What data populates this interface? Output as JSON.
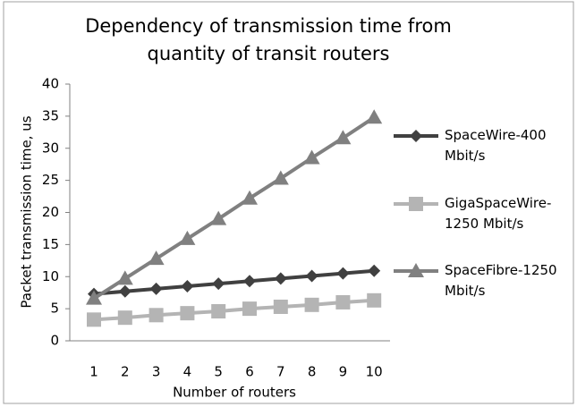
{
  "chart_data": {
    "type": "line",
    "title": "Dependency of transmission time from quantity of transit routers",
    "x_label": "Number of routers",
    "y_label": "Packet transmission time, us",
    "categories": [
      1,
      2,
      3,
      4,
      5,
      6,
      7,
      8,
      9,
      10
    ],
    "series": [
      {
        "name": "SpaceWire-400 Mbit/s",
        "color": "#404040",
        "marker": "diamond",
        "values": [
          7.3,
          7.7,
          8.1,
          8.5,
          8.9,
          9.3,
          9.7,
          10.1,
          10.5,
          10.9
        ]
      },
      {
        "name": "GigaSpaceWire-1250 Mbit/s",
        "color": "#b4b4b4",
        "marker": "square",
        "values": [
          3.3,
          3.6,
          4.0,
          4.3,
          4.6,
          5.0,
          5.3,
          5.6,
          6.0,
          6.3
        ]
      },
      {
        "name": "SpaceFibre-1250 Mbit/s",
        "color": "#808080",
        "marker": "triangle",
        "values": [
          6.6,
          9.7,
          12.8,
          15.9,
          19.0,
          22.2,
          25.3,
          28.5,
          31.6,
          34.8
        ]
      }
    ],
    "ylim": [
      0,
      40
    ],
    "yticks": [
      0,
      5,
      10,
      15,
      20,
      25,
      30,
      35,
      40
    ],
    "legend": "right"
  }
}
